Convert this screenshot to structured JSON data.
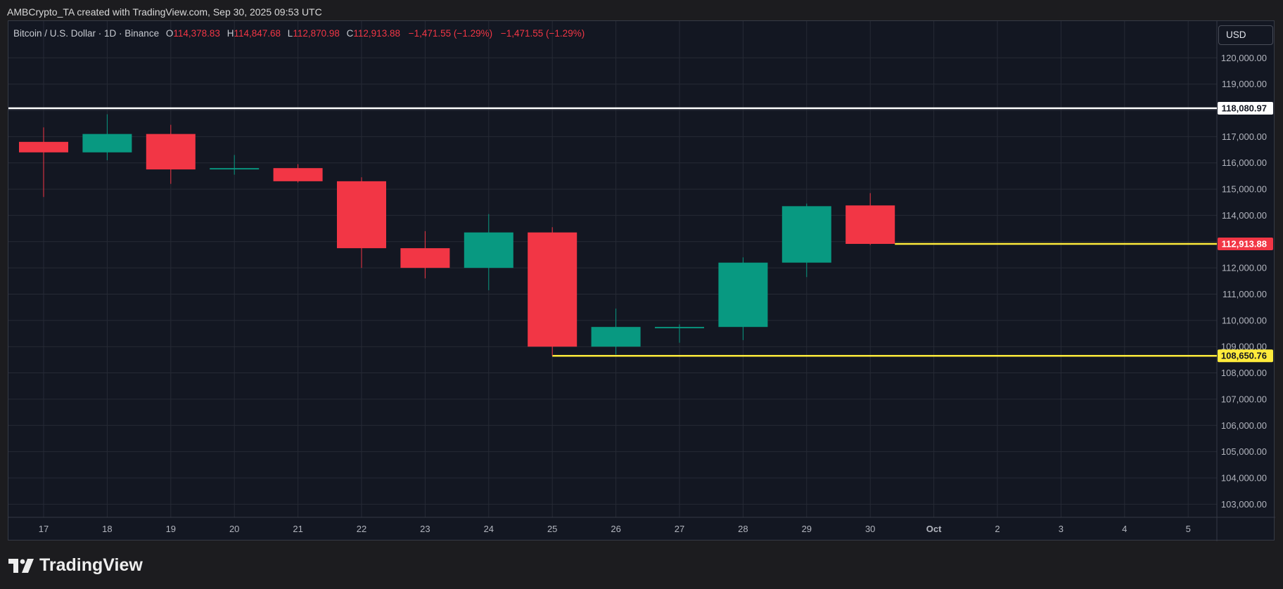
{
  "caption": "AMBCrypto_TA created with TradingView.com, Sep 30, 2025 09:53 UTC",
  "legend": {
    "symbol": "Bitcoin / U.S. Dollar · 1D · Binance",
    "open_label": "O",
    "open": "114,378.83",
    "high_label": "H",
    "high": "114,847.68",
    "low_label": "L",
    "low": "112,870.98",
    "close_label": "C",
    "close": "112,913.88",
    "change1": "−1,471.55 (−1.29%)",
    "change2": "−1,471.55 (−1.29%)"
  },
  "currency": "USD",
  "brand": {
    "name": "TradingView",
    "icon": "tradingview-logo-icon"
  },
  "colors": {
    "background": "#131722",
    "grid": "#262a35",
    "up": "#089981",
    "down": "#f23645",
    "resistance": "#ffffff",
    "support": "#ffeb3b",
    "axis_text": "#b2b5be"
  },
  "chart_data": {
    "type": "candlestick",
    "x_ticks": [
      "17",
      "18",
      "19",
      "20",
      "21",
      "22",
      "23",
      "24",
      "25",
      "26",
      "27",
      "28",
      "29",
      "30",
      "Oct",
      "2",
      "3",
      "4",
      "5"
    ],
    "y_ticks": [
      103000,
      104000,
      105000,
      106000,
      107000,
      108000,
      109000,
      110000,
      111000,
      112000,
      113000,
      114000,
      115000,
      116000,
      117000,
      118000,
      119000,
      120000
    ],
    "y_tick_labels": [
      "103,000.00",
      "104,000.00",
      "105,000.00",
      "106,000.00",
      "107,000.00",
      "108,000.00",
      "109,000.00",
      "110,000.00",
      "111,000.00",
      "112,000.00",
      "113,000.00",
      "114,000.00",
      "115,000.00",
      "116,000.00",
      "117,000.00",
      "118,000.00",
      "119,000.00",
      "120,000.00"
    ],
    "ylim": [
      102500,
      121400
    ],
    "candles": [
      {
        "date": "17",
        "open": 116800,
        "high": 117350,
        "low": 114700,
        "close": 116400
      },
      {
        "date": "18",
        "open": 116400,
        "high": 117850,
        "low": 116100,
        "close": 117100
      },
      {
        "date": "19",
        "open": 117100,
        "high": 117450,
        "low": 115200,
        "close": 115750
      },
      {
        "date": "20",
        "open": 115750,
        "high": 116300,
        "low": 115550,
        "close": 115800
      },
      {
        "date": "21",
        "open": 115800,
        "high": 115950,
        "low": 115250,
        "close": 115300
      },
      {
        "date": "22",
        "open": 115300,
        "high": 115450,
        "low": 112000,
        "close": 112750
      },
      {
        "date": "23",
        "open": 112750,
        "high": 113400,
        "low": 111600,
        "close": 112000
      },
      {
        "date": "24",
        "open": 112000,
        "high": 114050,
        "low": 111150,
        "close": 113350
      },
      {
        "date": "25",
        "open": 113350,
        "high": 113550,
        "low": 108650,
        "close": 109000
      },
      {
        "date": "26",
        "open": 109000,
        "high": 110450,
        "low": 108700,
        "close": 109750
      },
      {
        "date": "27",
        "open": 109700,
        "high": 109850,
        "low": 109150,
        "close": 109750
      },
      {
        "date": "28",
        "open": 109750,
        "high": 112400,
        "low": 109250,
        "close": 112200
      },
      {
        "date": "29",
        "open": 112200,
        "high": 114450,
        "low": 111650,
        "close": 114350
      },
      {
        "date": "30",
        "open": 114378.83,
        "high": 114847.68,
        "low": 112870.98,
        "close": 112913.88
      }
    ],
    "lines": [
      {
        "value": 118080.97,
        "label": "118,080.97",
        "color": "#ffffff",
        "from_index": -1
      },
      {
        "value": 112913.88,
        "label": "112,913.88",
        "color": "#ffeb3b",
        "from_index": 13
      },
      {
        "value": 108650.76,
        "label": "108,650.76",
        "color": "#ffeb3b",
        "from_index": 8
      }
    ]
  }
}
